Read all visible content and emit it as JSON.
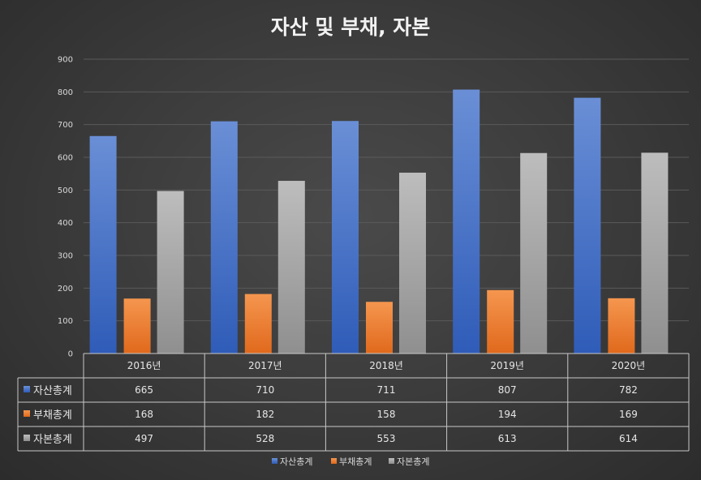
{
  "chart_data": {
    "type": "bar",
    "title": "자산 및 부채, 자본",
    "categories": [
      "2016년",
      "2017년",
      "2018년",
      "2019년",
      "2020년"
    ],
    "ylim": [
      0,
      900
    ],
    "yticks": [
      "0",
      "100",
      "200",
      "300",
      "400",
      "500",
      "600",
      "700",
      "800",
      "900"
    ],
    "grid": true,
    "legend_position": "bottom",
    "series": [
      {
        "name": "자산총계",
        "color": "#4472c4",
        "values": [
          665,
          710,
          711,
          807,
          782
        ]
      },
      {
        "name": "부채총계",
        "color": "#ed7d31",
        "values": [
          168,
          182,
          158,
          194,
          169
        ]
      },
      {
        "name": "자본총계",
        "color": "#a5a5a5",
        "values": [
          497,
          528,
          553,
          613,
          614
        ]
      }
    ]
  }
}
